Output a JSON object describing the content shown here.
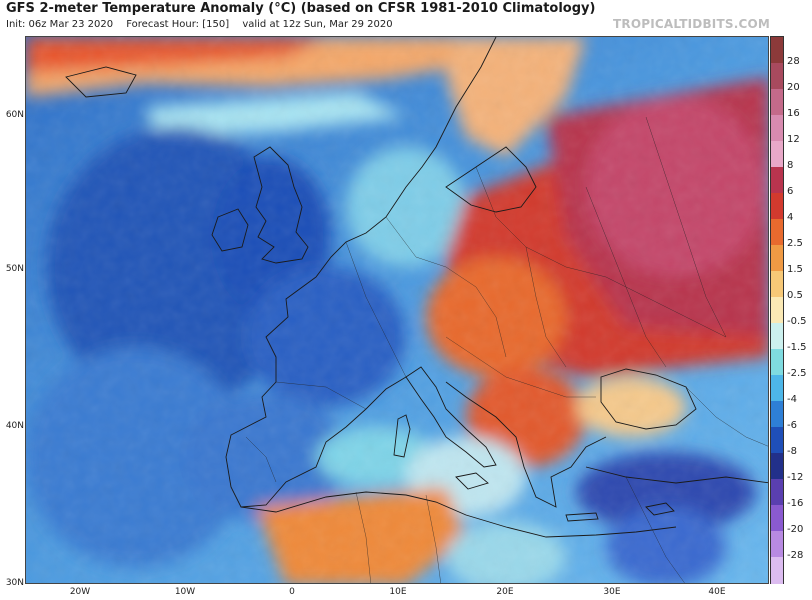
{
  "header": {
    "title": "GFS 2-meter Temperature Anomaly (°C) (based on CFSR 1981-2010 Climatology)",
    "init": "Init: 06z Mar 23 2020",
    "forecast_hour": "Forecast Hour: [150]",
    "valid": "valid at 12z Sun, Mar 29 2020",
    "site": "TROPICALTIDBITS.COM"
  },
  "map": {
    "lat_labels": [
      "60N",
      "50N",
      "40N",
      "30N"
    ],
    "lon_labels": [
      "20W",
      "10W",
      "0",
      "10E",
      "20E",
      "30E",
      "40E"
    ]
  },
  "colorbar": {
    "labels": [
      "28",
      "20",
      "16",
      "12",
      "8",
      "6",
      "4",
      "2.5",
      "1.5",
      "0.5",
      "-0.5",
      "-1.5",
      "-2.5",
      "-4",
      "-6",
      "-8",
      "-12",
      "-16",
      "-20",
      "-28"
    ],
    "colors": [
      "#8c3a3a",
      "#a84a5e",
      "#c46a8a",
      "#d88bb0",
      "#e8a8c8",
      "#b8344e",
      "#d23a2e",
      "#e86a2e",
      "#f09a44",
      "#f7c877",
      "#fbe9b5",
      "#ccf0ee",
      "#7fdbe0",
      "#4db6e8",
      "#2e7fd6",
      "#1f4fb8",
      "#22308a",
      "#5a3fb0",
      "#8a5ad0",
      "#b88ae2",
      "#dcbcf0"
    ]
  }
}
